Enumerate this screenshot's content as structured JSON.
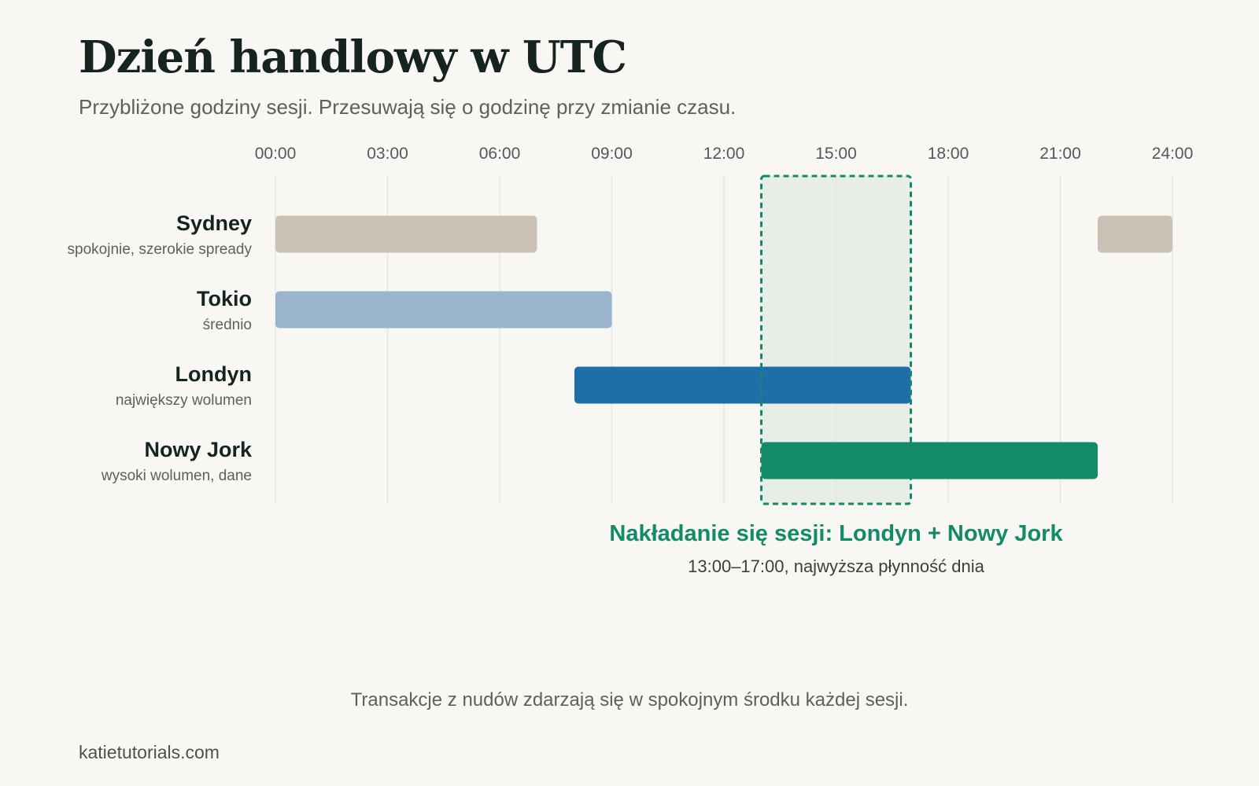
{
  "header": {
    "title": "Dzień handlowy w UTC",
    "subtitle": "Przybliżone godziny sesji. Przesuwają się o godzinę przy zmianie czasu."
  },
  "chart_data": {
    "type": "bar",
    "title": "Dzień handlowy w UTC",
    "subtitle": "Przybliżone godziny sesji. Przesuwają się o godzinę przy zmianie czasu.",
    "xlabel": "",
    "ylabel": "",
    "x_unit": "hour UTC",
    "xlim": [
      0,
      24
    ],
    "xticks": [
      0,
      3,
      6,
      9,
      12,
      15,
      18,
      21,
      24
    ],
    "xtick_labels": [
      "00:00",
      "03:00",
      "06:00",
      "09:00",
      "12:00",
      "15:00",
      "18:00",
      "21:00",
      "24:00"
    ],
    "grid": true,
    "sessions": [
      {
        "name": "Sydney",
        "note": "spokojnie, szerokie spready",
        "color": "#cbc2b5",
        "intervals": [
          [
            0,
            7
          ],
          [
            22,
            24
          ]
        ]
      },
      {
        "name": "Tokio",
        "note": "średnio",
        "color": "#9bb4cd",
        "intervals": [
          [
            0,
            9
          ]
        ]
      },
      {
        "name": "Londyn",
        "note": "największy wolumen",
        "color": "#206ea8",
        "intervals": [
          [
            8,
            17
          ]
        ]
      },
      {
        "name": "Nowy Jork",
        "note": "wysoki wolumen, dane",
        "color": "#138a68",
        "intervals": [
          [
            13,
            22
          ]
        ]
      }
    ],
    "highlight": {
      "start": 13,
      "end": 17,
      "title": "Nakładanie się sesji: Londyn + Nowy Jork",
      "subtitle": "13:00–17:00, najwyższa płynność dnia",
      "color": "#138a68",
      "fill": "#e6eee7"
    }
  },
  "caption": "Transakcje z nudów zdarzają się w spokojnym środku każdej sesji.",
  "footer": "katietutorials.com"
}
